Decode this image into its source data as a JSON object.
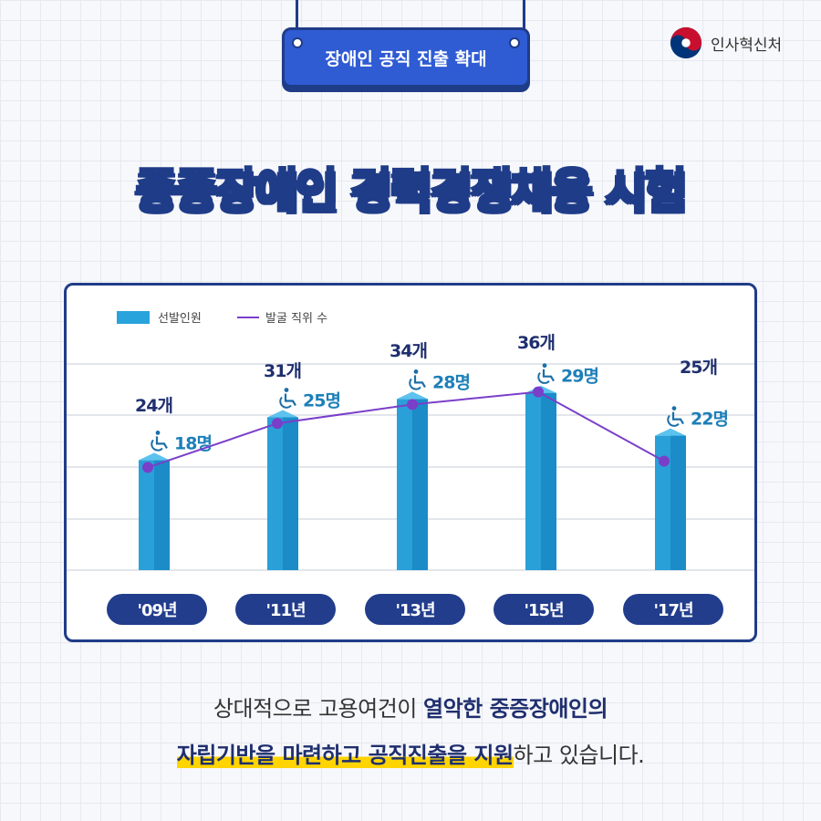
{
  "badge": {
    "label": "장애인 공직 진출 확대"
  },
  "logo": {
    "text": "인사혁신처",
    "icon": "taegeuk-icon",
    "colors": [
      "#c8102e",
      "#003478"
    ]
  },
  "title": "중증장애인 경력경쟁채용 시험",
  "chart_data": {
    "type": "bar",
    "categories": [
      "'09년",
      "'11년",
      "'13년",
      "'15년",
      "'17년"
    ],
    "series": [
      {
        "name": "선발인원",
        "type": "bar",
        "values": [
          18,
          25,
          28,
          29,
          22
        ],
        "labels": [
          "18명",
          "25명",
          "28명",
          "29명",
          "22명"
        ],
        "color": "#29a3dc",
        "icon": "wheelchair-icon"
      },
      {
        "name": "발굴 직위 수",
        "type": "line",
        "values": [
          24,
          31,
          34,
          36,
          25
        ],
        "labels": [
          "24개",
          "31개",
          "34개",
          "36개",
          "25개"
        ],
        "color": "#7a3fc9"
      }
    ],
    "legend": "top-left",
    "grid": true
  },
  "caption": {
    "line1_normal": "상대적으로 고용여건이 ",
    "line1_bold": "열악한 중증장애인의",
    "line2_highlight": "자립기반을 마련하고 공직진출을 지원",
    "line2_normal": "하고 있습니다."
  }
}
